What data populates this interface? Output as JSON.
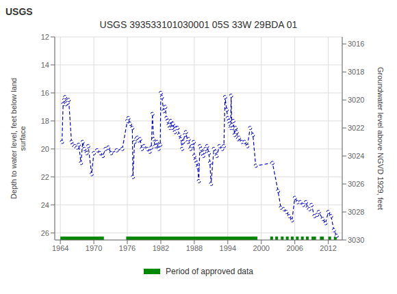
{
  "chart_data": {
    "type": "line",
    "title": "USGS 393533101030001 05S 33W 29BDA 01",
    "annotations": [
      "USGS"
    ],
    "y_label": "Depth to water level, feet below land\nsurface",
    "y2_label": "Groundwater level above NGVD 1929, feet",
    "xlim": [
      1963.0,
      2014.5
    ],
    "xticks": [
      1964,
      1970,
      1976,
      1982,
      1988,
      1994,
      2000,
      2006,
      2012
    ],
    "ylim": [
      26.5,
      12
    ],
    "yticks": [
      12,
      14,
      16,
      18,
      20,
      22,
      24,
      26
    ],
    "y2lim": [
      3030,
      3015.5
    ],
    "y2ticks": [
      3016,
      3018,
      3020,
      3022,
      3024,
      3026,
      3028,
      3030
    ],
    "grid": true,
    "legend": "bottom",
    "x": [
      1964.3,
      1964.5,
      1964.7,
      1964.85,
      1965.0,
      1965.15,
      1965.3,
      1965.5,
      1966.0,
      1966.2,
      1966.6,
      1967.0,
      1967.3,
      1967.7,
      1968.0,
      1968.3,
      1968.7,
      1969.0,
      1969.6,
      1970.0,
      1970.6,
      1971.1,
      1971.6,
      1972.1,
      1972.6,
      1973.1,
      1974.1,
      1975.1,
      1976.0,
      1976.2,
      1976.5,
      1976.9,
      1977.0,
      1977.3,
      1977.6,
      1977.8,
      1978.0,
      1978.3,
      1978.6,
      1979.0,
      1979.6,
      1980.0,
      1980.3,
      1980.5,
      1980.7,
      1981.0,
      1981.3,
      1981.6,
      1981.9,
      1982.0,
      1982.2,
      1982.5,
      1982.8,
      1983.0,
      1983.2,
      1983.4,
      1983.6,
      1983.8,
      1984.0,
      1984.2,
      1984.5,
      1984.8,
      1985.0,
      1985.3,
      1985.6,
      1985.8,
      1986.0,
      1986.3,
      1986.5,
      1986.8,
      1987.0,
      1987.3,
      1987.6,
      1987.9,
      1988.0,
      1988.2,
      1988.4,
      1988.6,
      1988.8,
      1989.0,
      1989.2,
      1989.4,
      1989.6,
      1989.8,
      1990.0,
      1990.3,
      1990.6,
      1990.8,
      1991.0,
      1991.5,
      1991.8,
      1992.0,
      1992.5,
      1993.0,
      1993.3,
      1993.5,
      1993.8,
      1994.0,
      1994.2,
      1994.3,
      1994.5,
      1994.6,
      1994.7,
      1994.85,
      1995.0,
      1995.2,
      1995.4,
      1995.6,
      1995.8,
      1996.0,
      1996.5,
      1997.0,
      1997.5,
      1998.0,
      1998.5,
      1999.0,
      2002.0,
      2003.0,
      2003.5,
      2004.0,
      2004.5,
      2005.0,
      2005.5,
      2006.0,
      2006.5,
      2007.0,
      2007.5,
      2008.0,
      2008.3,
      2008.6,
      2009.0,
      2009.5,
      2010.0,
      2010.3,
      2011.0,
      2011.5,
      2012.0,
      2012.5,
      2013.0,
      2013.5
    ],
    "series": [
      {
        "color": "#0000CC",
        "line_style": "dashed",
        "marker": "circle",
        "values": [
          19.5,
          16.8,
          16.5,
          16.3,
          16.8,
          16.6,
          16.7,
          16.5,
          19.5,
          19.7,
          19.8,
          19.9,
          19.7,
          21.0,
          19.5,
          20.0,
          20.3,
          19.8,
          21.8,
          20.3,
          20.1,
          20.3,
          20.5,
          20.0,
          19.9,
          20.3,
          20.1,
          20.0,
          18.0,
          17.8,
          18.2,
          18.5,
          22.0,
          19.5,
          19.3,
          19.2,
          19.4,
          19.3,
          20.0,
          19.8,
          20.0,
          20.2,
          19.9,
          17.5,
          19.3,
          19.8,
          19.5,
          20.0,
          19.7,
          16.0,
          16.3,
          17.3,
          17.0,
          17.8,
          18.0,
          18.3,
          18.5,
          18.0,
          18.5,
          18.2,
          18.8,
          18.5,
          18.5,
          19.0,
          19.3,
          20.0,
          19.5,
          19.0,
          18.8,
          19.5,
          19.3,
          20.0,
          19.8,
          19.5,
          20.5,
          20.8,
          21.0,
          21.3,
          22.3,
          19.8,
          20.0,
          20.3,
          20.5,
          20.2,
          20.0,
          19.8,
          20.3,
          21.0,
          22.5,
          20.0,
          20.2,
          20.5,
          19.8,
          20.0,
          19.8,
          16.3,
          17.2,
          17.8,
          18.0,
          18.2,
          18.5,
          16.2,
          18.3,
          18.5,
          18.0,
          19.0,
          18.5,
          18.8,
          19.3,
          19.2,
          19.5,
          19.5,
          19.8,
          18.5,
          19.0,
          21.2,
          21.0,
          23.0,
          24.2,
          24.3,
          24.5,
          24.8,
          25.1,
          23.5,
          23.8,
          23.8,
          24.0,
          23.8,
          24.2,
          24.3,
          24.0,
          24.8,
          24.7,
          24.5,
          25.0,
          25.3,
          24.5,
          24.8,
          25.8,
          26.2
        ]
      }
    ],
    "approved_data": {
      "label": "Period of approved data",
      "color": "#008800",
      "periods": [
        [
          1964.0,
          1971.8
        ],
        [
          1975.8,
          1999.3
        ],
        [
          2001.6,
          2002.1
        ],
        [
          2002.5,
          2003.0
        ],
        [
          2003.5,
          2004.0
        ],
        [
          2004.4,
          2004.9
        ],
        [
          2005.3,
          2005.8
        ],
        [
          2006.2,
          2006.7
        ],
        [
          2007.1,
          2007.6
        ],
        [
          2008.0,
          2008.5
        ],
        [
          2009.0,
          2009.8
        ],
        [
          2010.5,
          2011.2
        ],
        [
          2012.0,
          2012.5
        ],
        [
          2013.0,
          2013.5
        ]
      ]
    }
  }
}
